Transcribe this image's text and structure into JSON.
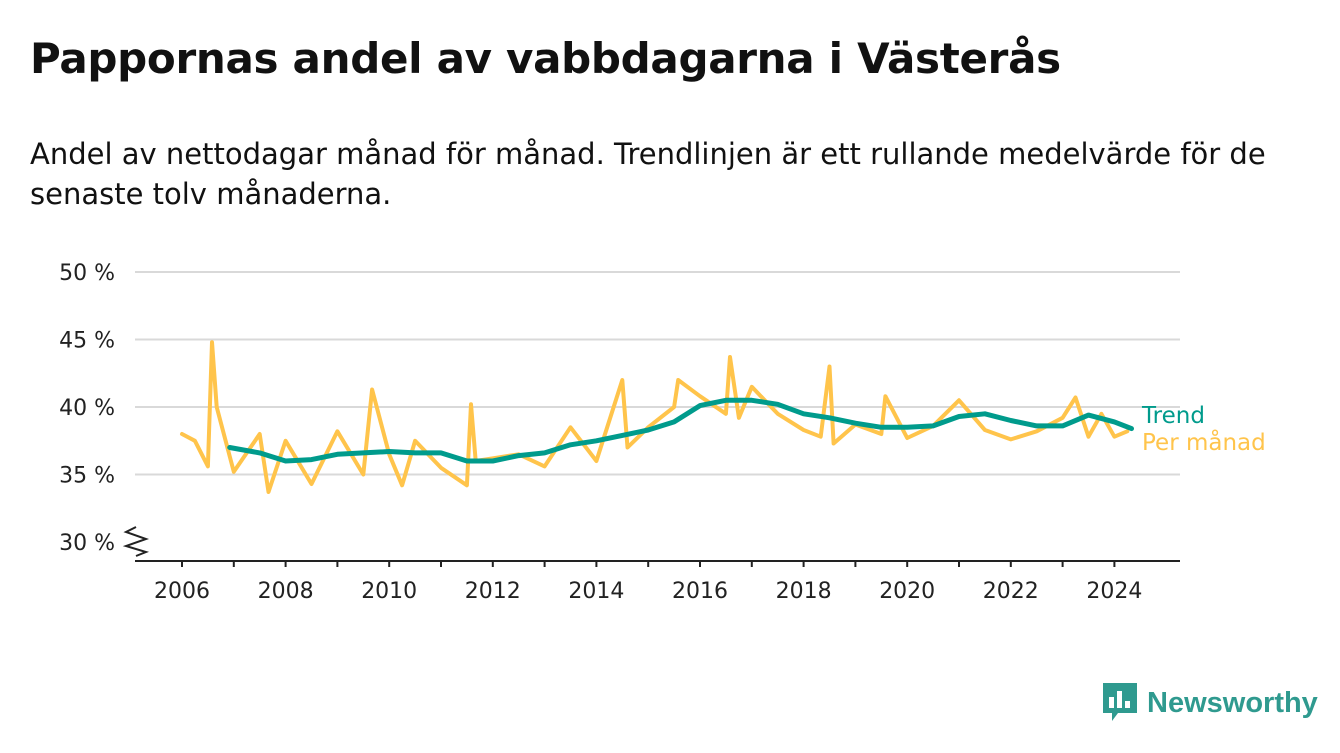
{
  "title": "Pappornas andel av vabbdagarna i Västerås",
  "subtitle": "Andel av nettodagar månad för månad. Trendlinjen är ett rullande medelvärde för de senaste tolv månaderna.",
  "brand": "Newsworthy",
  "colors": {
    "monthly": "#ffc44b",
    "trend": "#009b8c",
    "grid": "#d9d9d9",
    "axis": "#222222",
    "brand": "#2f9a8f"
  },
  "chart_data": {
    "type": "line",
    "ylim": [
      30,
      50
    ],
    "y_ticks": [
      {
        "value": 30,
        "label": "30 %"
      },
      {
        "value": 35,
        "label": "35 %"
      },
      {
        "value": 40,
        "label": "40 %"
      },
      {
        "value": 45,
        "label": "45 %"
      },
      {
        "value": 50,
        "label": "50 %"
      }
    ],
    "y_axis_break": true,
    "x_ticks": [
      2006,
      2008,
      2010,
      2012,
      2014,
      2016,
      2018,
      2020,
      2022,
      2024
    ],
    "grid": true,
    "legend": "labels at line ends, right",
    "series": [
      {
        "name": "Per månad",
        "color": "#ffc44b",
        "x": [
          2006.0,
          2006.25,
          2006.5,
          2006.58,
          2006.67,
          2007.0,
          2007.5,
          2007.67,
          2008.0,
          2008.5,
          2009.0,
          2009.5,
          2009.67,
          2010.0,
          2010.25,
          2010.5,
          2011.0,
          2011.5,
          2011.58,
          2011.67,
          2012.0,
          2012.5,
          2013.0,
          2013.5,
          2014.0,
          2014.5,
          2014.6,
          2015.0,
          2015.5,
          2015.58,
          2016.0,
          2016.5,
          2016.58,
          2016.75,
          2017.0,
          2017.5,
          2018.0,
          2018.33,
          2018.5,
          2018.58,
          2019.0,
          2019.5,
          2019.58,
          2020.0,
          2020.5,
          2021.0,
          2021.5,
          2022.0,
          2022.5,
          2023.0,
          2023.25,
          2023.5,
          2023.75,
          2024.0,
          2024.25
        ],
        "values": [
          38.0,
          37.5,
          35.6,
          44.8,
          40.0,
          35.2,
          38.0,
          33.7,
          37.5,
          34.3,
          38.2,
          35.0,
          41.3,
          36.5,
          34.2,
          37.5,
          35.5,
          34.2,
          40.2,
          36.0,
          36.2,
          36.5,
          35.6,
          38.5,
          36.0,
          42.0,
          37.0,
          38.5,
          40.0,
          42.0,
          40.8,
          39.5,
          43.7,
          39.2,
          41.5,
          39.5,
          38.3,
          37.8,
          43.0,
          37.3,
          38.7,
          38.0,
          40.8,
          37.7,
          38.6,
          40.5,
          38.3,
          37.6,
          38.2,
          39.2,
          40.7,
          37.8,
          39.5,
          37.8,
          38.2
        ]
      },
      {
        "name": "Trend",
        "color": "#009b8c",
        "x": [
          2006.92,
          2007.5,
          2008.0,
          2008.5,
          2009.0,
          2009.5,
          2010.0,
          2010.5,
          2011.0,
          2011.5,
          2012.0,
          2012.5,
          2013.0,
          2013.5,
          2014.0,
          2014.5,
          2015.0,
          2015.5,
          2016.0,
          2016.5,
          2017.0,
          2017.5,
          2018.0,
          2018.5,
          2019.0,
          2019.5,
          2020.0,
          2020.5,
          2021.0,
          2021.5,
          2022.0,
          2022.5,
          2023.0,
          2023.5,
          2024.0,
          2024.33
        ],
        "values": [
          37.0,
          36.6,
          36.0,
          36.1,
          36.5,
          36.6,
          36.7,
          36.6,
          36.6,
          36.0,
          36.0,
          36.4,
          36.6,
          37.2,
          37.5,
          37.9,
          38.3,
          38.9,
          40.1,
          40.5,
          40.5,
          40.2,
          39.5,
          39.2,
          38.8,
          38.5,
          38.5,
          38.6,
          39.3,
          39.5,
          39.0,
          38.6,
          38.6,
          39.4,
          38.9,
          38.4
        ]
      }
    ]
  }
}
